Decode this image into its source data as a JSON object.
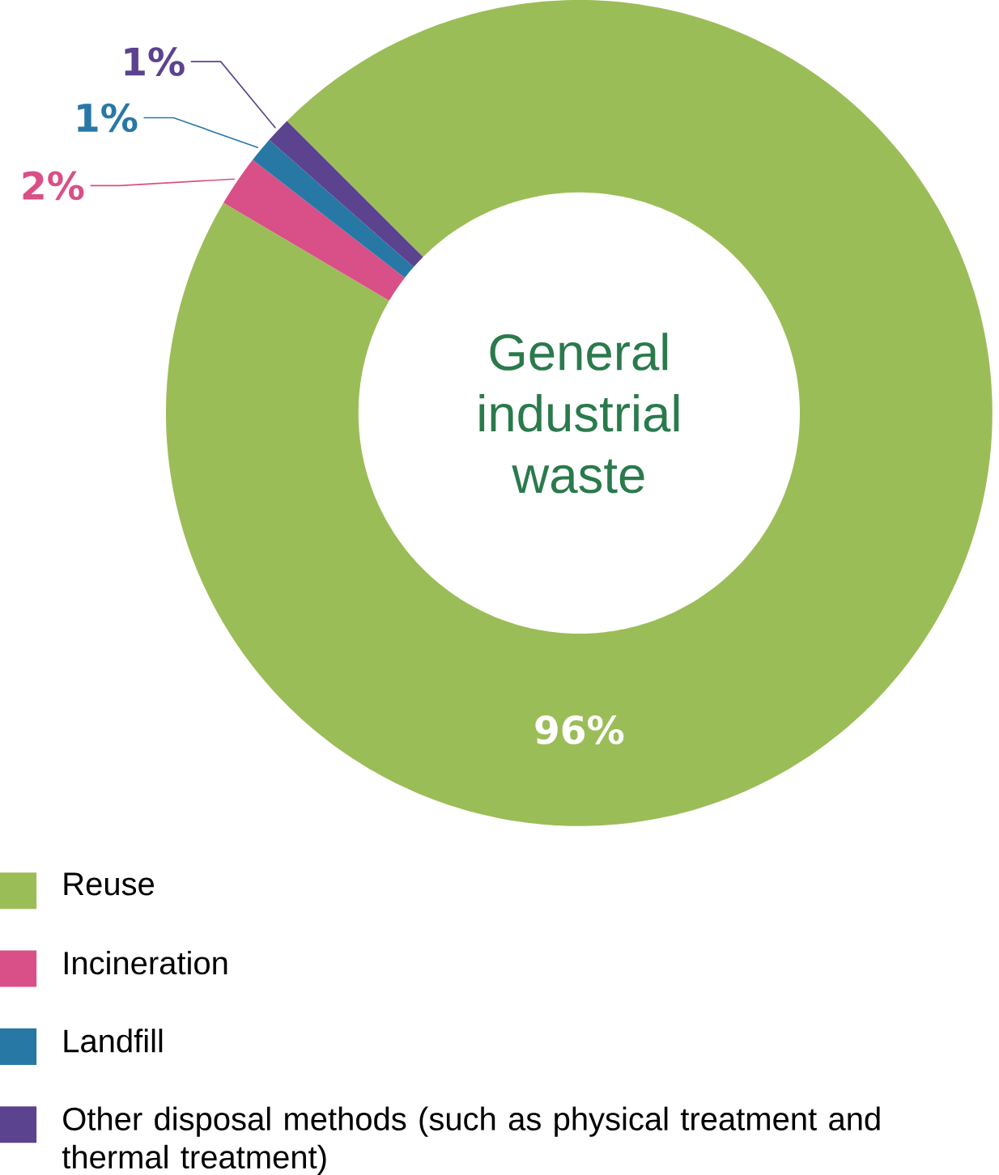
{
  "chart_data": {
    "type": "donut",
    "title": "General industrial waste",
    "categories": [
      "Reuse",
      "Incineration",
      "Landfill",
      "Other disposal methods (such as physical treatment and thermal treatment)"
    ],
    "values": [
      96,
      2,
      1,
      1
    ],
    "colors": [
      "#9bbd57",
      "#d94f87",
      "#2878a6",
      "#5b438f"
    ],
    "value_labels": [
      "96%",
      "2%",
      "1%",
      "1%"
    ],
    "legend": "bottom"
  }
}
